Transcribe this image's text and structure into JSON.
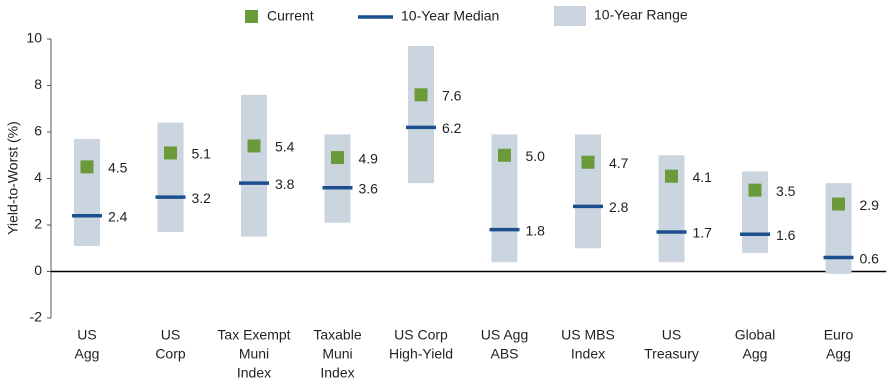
{
  "chart_data": {
    "type": "range-median-current",
    "y_label": "Yield-to-Worst (%)",
    "categories": [
      [
        "US",
        "Agg"
      ],
      [
        "US",
        "Corp"
      ],
      [
        "Tax Exempt",
        "Muni",
        "Index"
      ],
      [
        "Taxable",
        "Muni",
        "Index"
      ],
      [
        "US Corp",
        "High-Yield"
      ],
      [
        "US Agg",
        "ABS"
      ],
      [
        "US MBS",
        "Index"
      ],
      [
        "US",
        "Treasury"
      ],
      [
        "Global",
        "Agg"
      ],
      [
        "Euro",
        "Agg"
      ]
    ],
    "series": [
      {
        "name": "Current",
        "color": "#6b9a3a",
        "values": [
          4.5,
          5.1,
          5.4,
          4.9,
          7.6,
          5.0,
          4.7,
          4.1,
          3.5,
          2.9
        ],
        "value_labels": [
          "4.5",
          "5.1",
          "5.4",
          "4.9",
          "7.6",
          "5.0",
          "4.7",
          "4.1",
          "3.5",
          "2.9"
        ]
      },
      {
        "name": "10-Year Median",
        "color": "#1b4f8e",
        "values": [
          2.4,
          3.2,
          3.8,
          3.6,
          6.2,
          1.8,
          2.8,
          1.7,
          1.6,
          0.6
        ],
        "value_labels": [
          "2.4",
          "3.2",
          "3.8",
          "3.6",
          "6.2",
          "1.8",
          "2.8",
          "1.7",
          "1.6",
          "0.6"
        ]
      },
      {
        "name": "10-Year Range",
        "color": "#cbd5df",
        "low": [
          1.1,
          1.7,
          1.5,
          2.1,
          3.8,
          0.4,
          1.0,
          0.4,
          0.8,
          -0.1
        ],
        "high": [
          5.7,
          6.4,
          7.6,
          5.9,
          9.7,
          5.9,
          5.9,
          5.0,
          4.3,
          3.8
        ]
      }
    ],
    "ylim": [
      -2,
      10
    ],
    "yticks": [
      -2,
      0,
      2,
      4,
      6,
      8,
      10
    ]
  }
}
